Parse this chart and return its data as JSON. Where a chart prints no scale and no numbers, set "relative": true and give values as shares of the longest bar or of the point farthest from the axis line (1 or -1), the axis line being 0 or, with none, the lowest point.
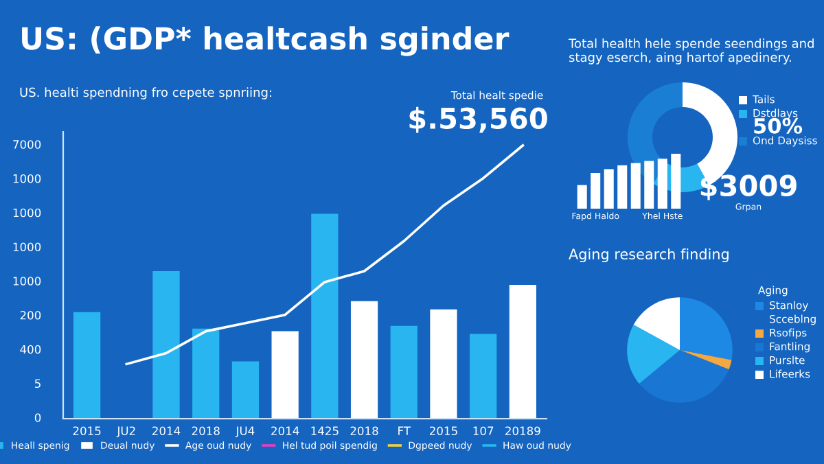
{
  "chart_data": [
    {
      "type": "bar",
      "title": "US: (GDP* healtcash sginder",
      "subtitle": "US. healti spendning fro cepete spnriing:",
      "categories": [
        "2015",
        "JU2",
        "2014",
        "2018",
        "JU4",
        "2014",
        "1425",
        "2018",
        "FT",
        "2015",
        "107",
        "20189"
      ],
      "series": [
        {
          "name": "Heall spenig",
          "type": "bar",
          "color": "#29b6f0",
          "values": [
            0.39,
            null,
            0.54,
            0.33,
            0.21,
            null,
            0.75,
            null,
            0.34,
            null,
            0.31,
            null
          ]
        },
        {
          "name": "Deual nudy",
          "type": "bar",
          "color": "#ffffff",
          "values": [
            null,
            null,
            null,
            null,
            null,
            0.32,
            null,
            0.43,
            null,
            0.4,
            null,
            0.49
          ]
        },
        {
          "name": "Age oud nudy",
          "type": "line",
          "color": "#ffffff",
          "values": [
            null,
            0.2,
            0.24,
            0.32,
            0.35,
            0.38,
            0.5,
            0.54,
            0.65,
            0.78,
            0.88,
            1
          ]
        },
        {
          "name": "Hel tud poil spendig",
          "type": "line",
          "color": "#e040c0",
          "values": [
            null,
            null,
            null,
            null,
            null,
            null,
            null,
            null,
            null,
            null,
            null,
            null
          ]
        },
        {
          "name": "Dgpeed nudy",
          "type": "line",
          "color": "#f0d040",
          "values": [
            null,
            null,
            null,
            null,
            null,
            null,
            null,
            null,
            null,
            null,
            null,
            null
          ]
        },
        {
          "name": "Haw oud nudy",
          "type": "line",
          "color": "#29b6f0",
          "values": [
            null,
            null,
            null,
            null,
            null,
            null,
            null,
            null,
            null,
            null,
            null,
            null
          ]
        }
      ],
      "relative": true,
      "legend": "bottom",
      "annotations": [
        "Total healt spedie",
        "$.53,560",
        "0",
        "5",
        "400",
        "200",
        "1000",
        "1000",
        "1000",
        "1000",
        "7000"
      ]
    },
    {
      "type": "bar",
      "relative": true,
      "categories": [
        null,
        "Fapd Haldo",
        null,
        null,
        null,
        null,
        "Yhel Hste",
        null
      ],
      "values": [
        0.43,
        0.65,
        0.72,
        0.79,
        0.83,
        0.87,
        0.91,
        1
      ],
      "color": "#ffffff"
    },
    {
      "type": "donut",
      "title": "Total health hele spende seendings and stagy eserch, aing hartof apedinery.",
      "categories": [
        "Tails",
        "Dstdlays",
        "Ond Daysiss"
      ],
      "values": [
        42,
        17,
        41
      ],
      "colors": [
        "#ffffff",
        "#29b6f0",
        "#1a7fd4"
      ],
      "legend": "right",
      "annotations": [
        "50%",
        "$3009",
        "Grpan"
      ]
    },
    {
      "type": "pie",
      "title": "Aging research finding",
      "legend_title": "Aging",
      "categories": [
        "Stanloy",
        "Rsofips",
        "Fantling",
        "Purslte",
        "Lifeerks"
      ],
      "values": [
        28,
        3,
        33,
        19,
        17
      ],
      "colors": [
        "#1e88e5",
        "#f5a742",
        "#1976d2",
        "#29b6f0",
        "#ffffff"
      ],
      "legend": "right",
      "annotations": [
        "Scceblng"
      ]
    }
  ]
}
